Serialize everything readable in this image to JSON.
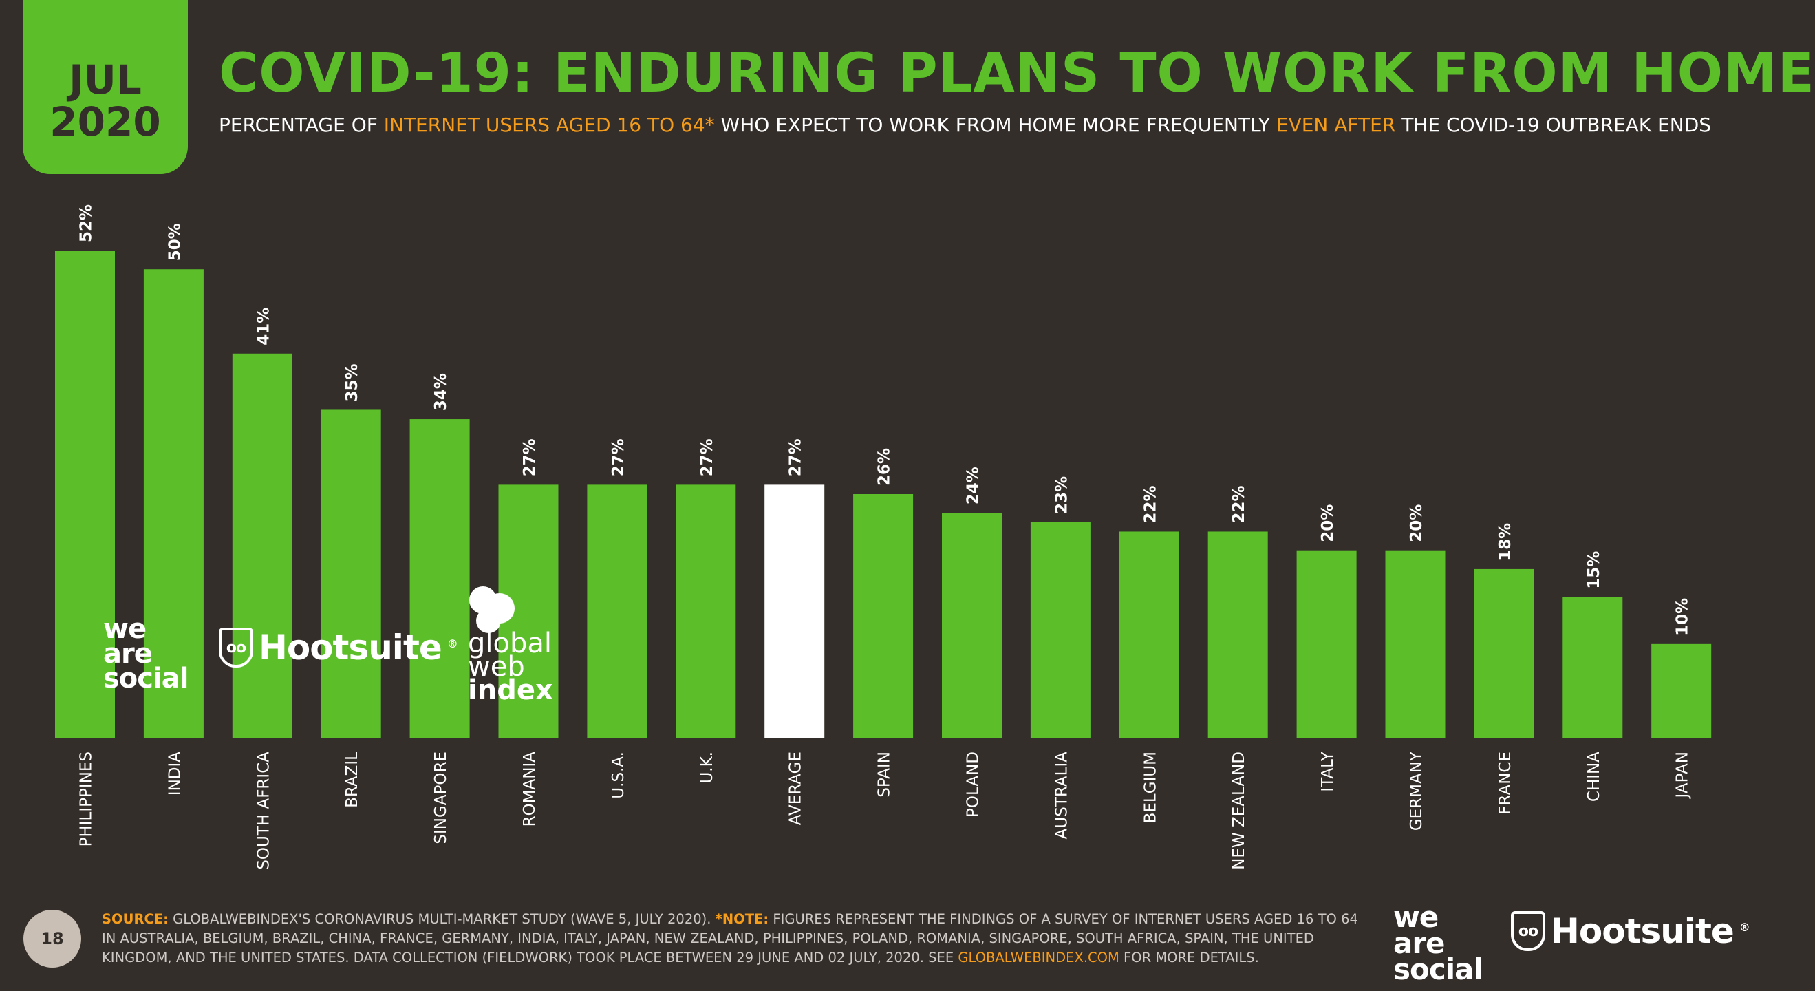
{
  "header": {
    "month": "JUL",
    "year": "2020",
    "title": "COVID-19: ENDURING PLANS TO WORK FROM HOME",
    "subtitle_parts": [
      "PERCENTAGE OF ",
      "INTERNET USERS AGED  16 TO 64*",
      " WHO EXPECT TO WORK FROM HOME MORE FREQUENTLY ",
      "EVEN AFTER",
      " THE COVID-19 OUTBREAK ENDS"
    ]
  },
  "colors": {
    "bar": "#5cbf2a",
    "highlight": "#ffffff",
    "background": "#342e2a",
    "accent": "#f59c1a"
  },
  "chart_data": {
    "type": "bar",
    "title": "COVID-19: ENDURING PLANS TO WORK FROM HOME",
    "ylabel": "Percentage of internet users aged 16 to 64",
    "xlabel": "",
    "ylim": [
      0,
      52
    ],
    "categories": [
      "PHILIPPINES",
      "INDIA",
      "SOUTH AFRICA",
      "BRAZIL",
      "SINGAPORE",
      "ROMANIA",
      "U.S.A.",
      "U.K.",
      "AVERAGE",
      "SPAIN",
      "POLAND",
      "AUSTRALIA",
      "BELGIUM",
      "NEW ZEALAND",
      "ITALY",
      "GERMANY",
      "FRANCE",
      "CHINA",
      "JAPAN"
    ],
    "values": [
      52,
      50,
      41,
      35,
      34,
      27,
      27,
      27,
      27,
      26,
      24,
      23,
      22,
      22,
      20,
      20,
      18,
      15,
      10
    ],
    "value_labels": [
      "52%",
      "50%",
      "41%",
      "35%",
      "34%",
      "27%",
      "27%",
      "27%",
      "27%",
      "26%",
      "24%",
      "23%",
      "22%",
      "22%",
      "20%",
      "20%",
      "18%",
      "15%",
      "10%"
    ],
    "highlight_category": "AVERAGE",
    "grid": false
  },
  "logos": {
    "was": [
      "we",
      "are",
      "social"
    ],
    "hootsuite": "Hootsuite",
    "hootsuite_mark": "®",
    "owl_eyes": "oo",
    "gwi": [
      "global",
      "web",
      "index"
    ]
  },
  "footer": {
    "page_number": "18",
    "source_label": "SOURCE:",
    "source_text": " GLOBALWEBINDEX'S CORONAVIRUS MULTI-MARKET STUDY (WAVE 5, JULY 2020). ",
    "note_label": "*NOTE:",
    "note_text": " FIGURES REPRESENT THE FINDINGS OF A SURVEY OF INTERNET USERS AGED 16 TO 64 IN AUSTRALIA, BELGIUM, BRAZIL, CHINA, FRANCE, GERMANY, INDIA, ITALY, JAPAN, NEW ZEALAND, PHILIPPINES, POLAND, ROMANIA, SINGAPORE, SOUTH AFRICA, SPAIN, THE UNITED KINGDOM, AND THE UNITED STATES. DATA COLLECTION (FIELDWORK) TOOK PLACE BETWEEN 29 JUNE AND 02 JULY, 2020. SEE ",
    "link_text": "GLOBALWEBINDEX.COM",
    "tail_text": " FOR MORE DETAILS."
  }
}
